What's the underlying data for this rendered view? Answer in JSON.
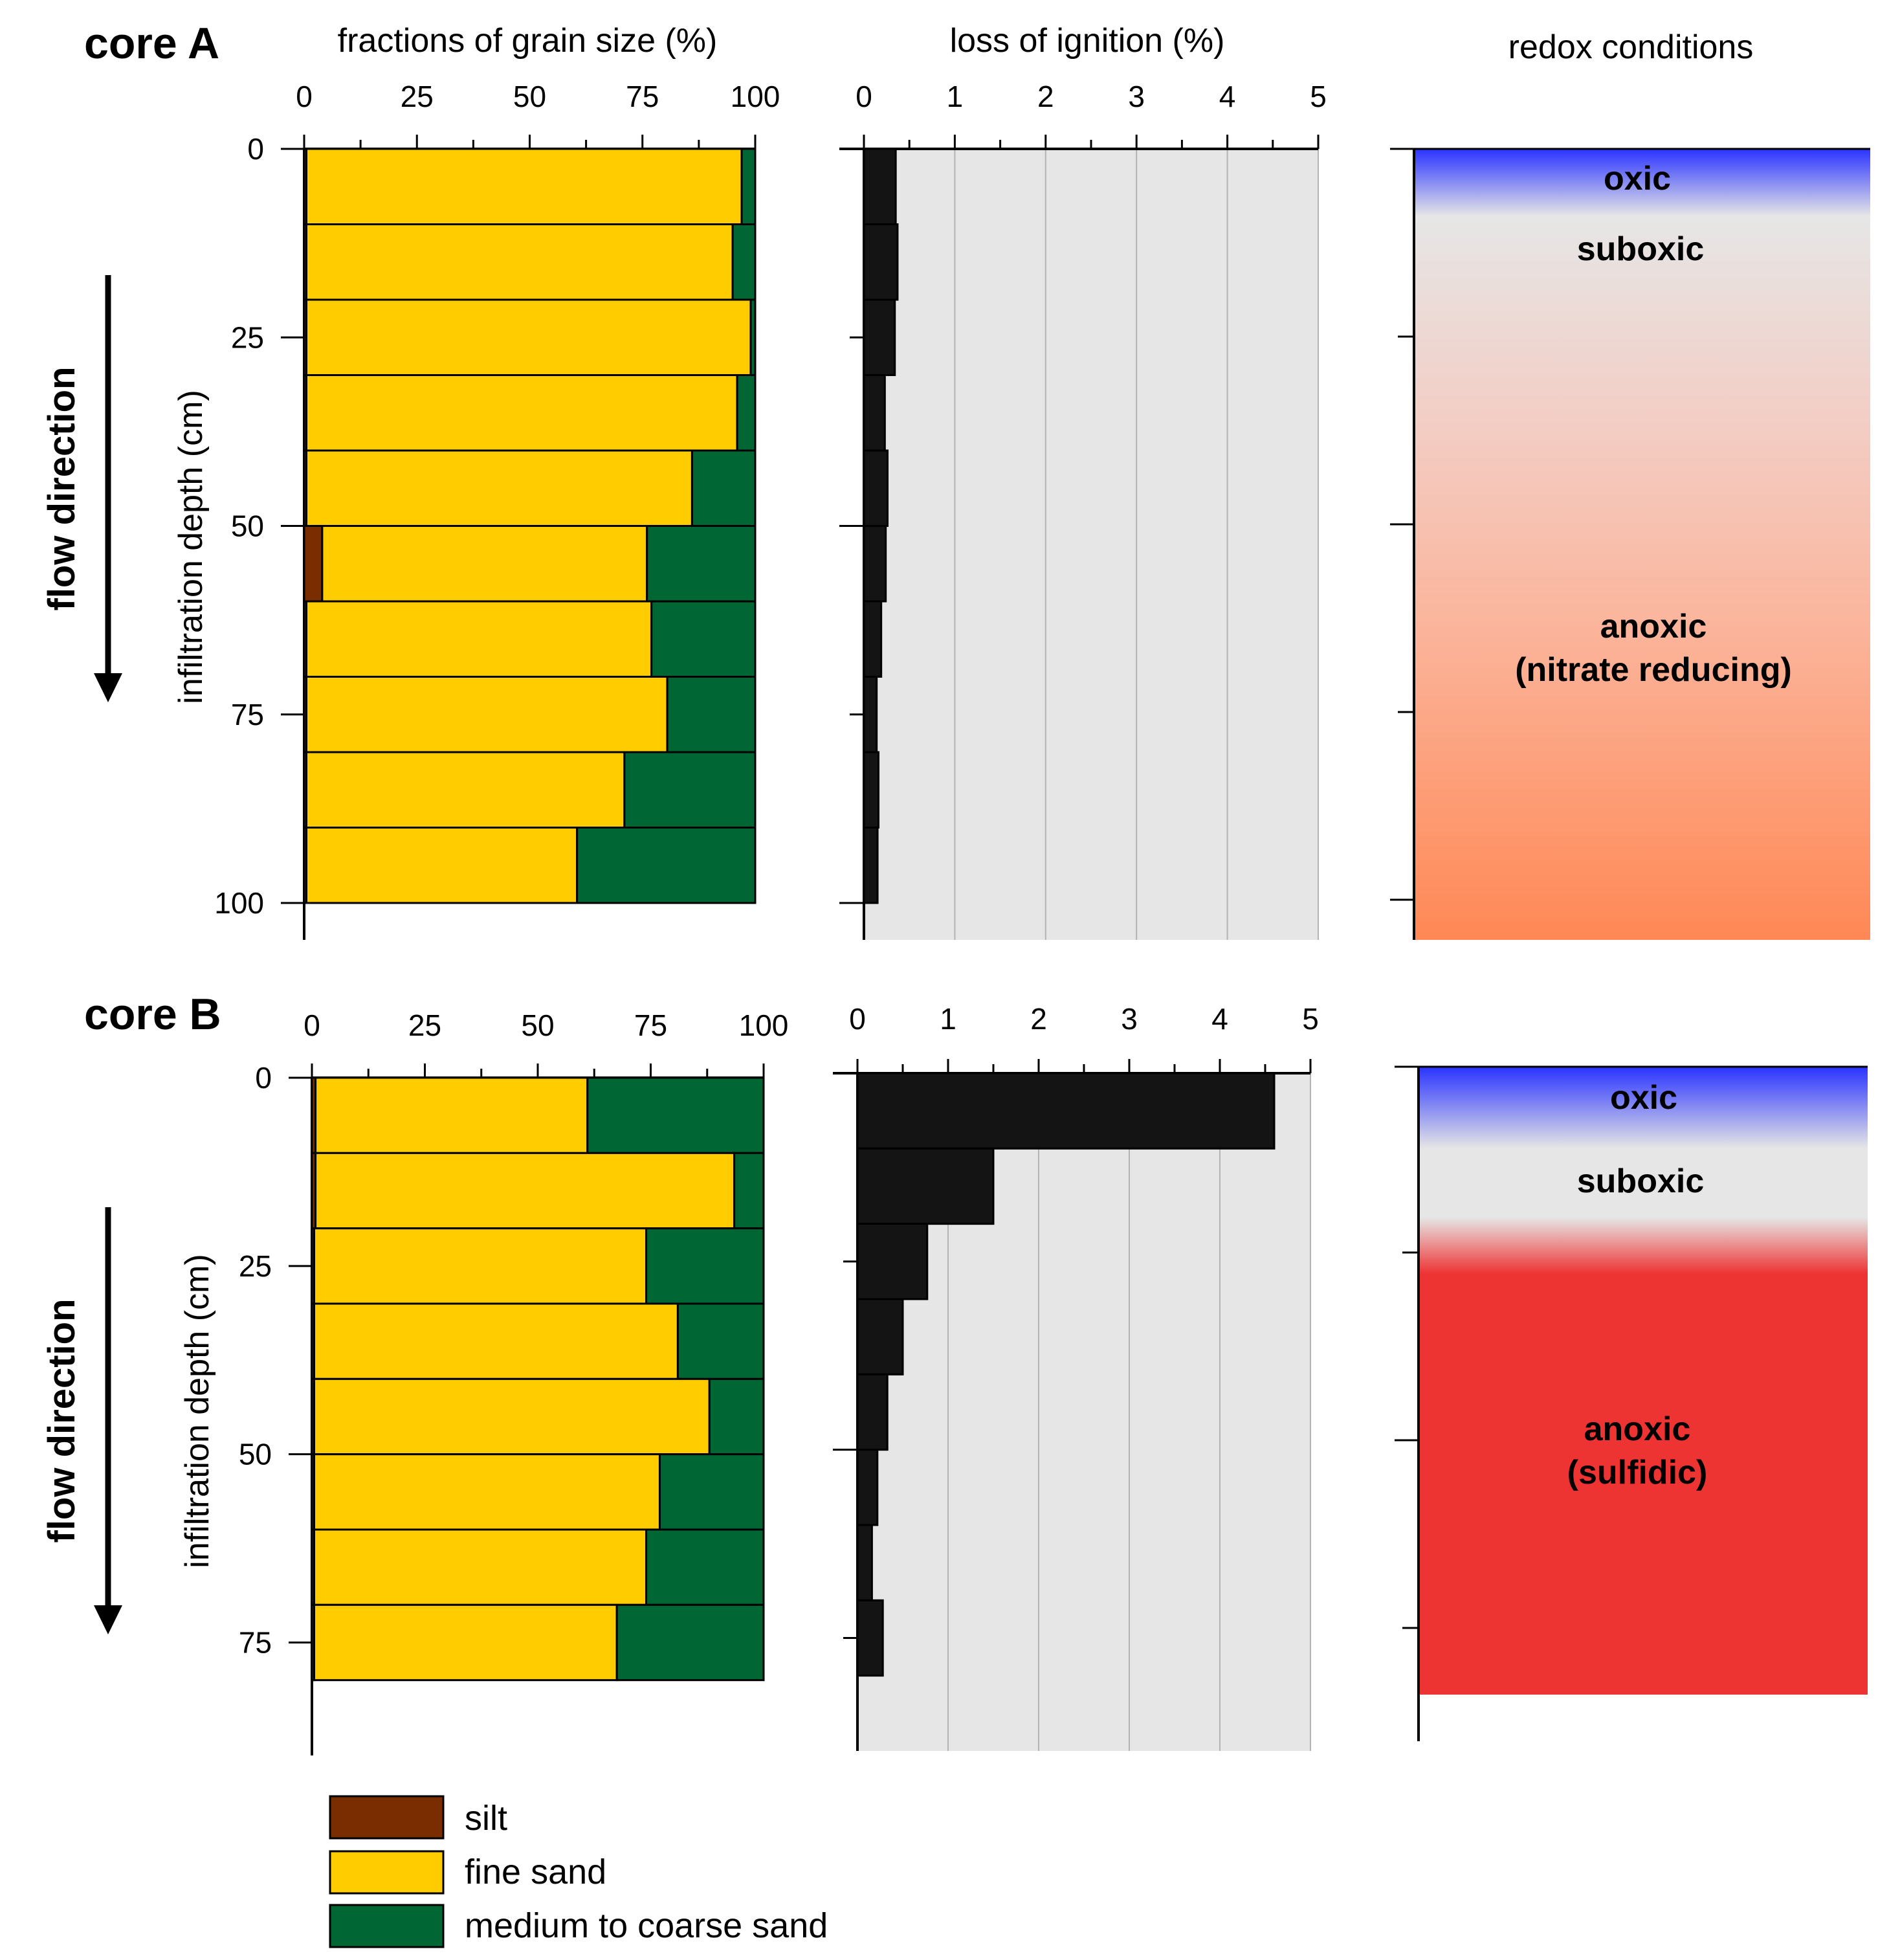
{
  "panels": {
    "column_titles": {
      "grain": "fractions of grain size (%)",
      "loi": "loss of ignition (%)",
      "redox": "redox conditions"
    },
    "core_a": {
      "title": "core A",
      "flow_label": "flow direction"
    },
    "core_b": {
      "title": "core B",
      "flow_label": "flow direction"
    }
  },
  "legend": [
    {
      "label": "silt",
      "color": "#7a2e00"
    },
    {
      "label": "fine sand",
      "color": "#ffcc00"
    },
    {
      "label": "medium to coarse sand",
      "color": "#006633"
    }
  ],
  "chart_data": [
    {
      "id": "coreA-grain",
      "type": "bar",
      "orientation": "horizontal-stacked",
      "title": "fractions of grain size (%)",
      "ylabel": "infiltration depth (cm)",
      "xlim": [
        0,
        100
      ],
      "ylim": [
        100,
        0
      ],
      "xticks": [
        0,
        25,
        50,
        75,
        100
      ],
      "yticks": [
        0,
        25,
        50,
        75,
        100
      ],
      "depth_intervals": [
        [
          0,
          10
        ],
        [
          10,
          20
        ],
        [
          20,
          30
        ],
        [
          30,
          40
        ],
        [
          40,
          50
        ],
        [
          50,
          60
        ],
        [
          60,
          70
        ],
        [
          70,
          80
        ],
        [
          80,
          90
        ],
        [
          90,
          100
        ]
      ],
      "series": [
        {
          "name": "silt",
          "color": "#7a2e00",
          "values": [
            0.5,
            0.5,
            0.5,
            0.5,
            0.5,
            4,
            0.5,
            0.5,
            0.5,
            0.5
          ]
        },
        {
          "name": "fine sand",
          "color": "#ffcc00",
          "values": [
            96.5,
            94.5,
            98.5,
            95.5,
            85.5,
            72,
            76.5,
            80,
            70.5,
            60
          ]
        },
        {
          "name": "medium to coarse sand",
          "color": "#006633",
          "values": [
            3,
            5,
            1,
            4,
            14,
            24,
            23,
            19.5,
            29,
            39.5
          ]
        }
      ]
    },
    {
      "id": "coreA-loi",
      "type": "bar",
      "orientation": "horizontal",
      "title": "loss of ignition (%)",
      "xlim": [
        0,
        5
      ],
      "ylim": [
        100,
        0
      ],
      "xticks": [
        0,
        1,
        2,
        3,
        4,
        5
      ],
      "depth_intervals": [
        [
          0,
          10
        ],
        [
          10,
          20
        ],
        [
          20,
          30
        ],
        [
          30,
          40
        ],
        [
          40,
          50
        ],
        [
          50,
          60
        ],
        [
          60,
          70
        ],
        [
          70,
          80
        ],
        [
          80,
          90
        ],
        [
          90,
          100
        ]
      ],
      "values": [
        0.35,
        0.37,
        0.34,
        0.23,
        0.26,
        0.24,
        0.19,
        0.14,
        0.16,
        0.15
      ]
    },
    {
      "id": "coreA-redox",
      "type": "table",
      "title": "redox conditions",
      "ylim": [
        105,
        0
      ],
      "zones": [
        {
          "label": "oxic",
          "sublabel": "",
          "from": 0,
          "to": 8,
          "color": "#2a33ff"
        },
        {
          "label": "suboxic",
          "sublabel": "",
          "from": 8,
          "to": 25,
          "color": "#e6e6e6"
        },
        {
          "label": "anoxic",
          "sublabel": "(nitrate reducing)",
          "from": 25,
          "to": 105,
          "color": "#ff8855"
        }
      ]
    },
    {
      "id": "coreB-grain",
      "type": "bar",
      "orientation": "horizontal-stacked",
      "title": "fractions of grain size (%)",
      "ylabel": "infiltration depth (cm)",
      "xlim": [
        0,
        100
      ],
      "ylim": [
        90,
        0
      ],
      "xticks": [
        0,
        25,
        50,
        75,
        100
      ],
      "yticks": [
        0,
        25,
        50,
        75
      ],
      "depth_intervals": [
        [
          0,
          10
        ],
        [
          10,
          20
        ],
        [
          20,
          30
        ],
        [
          30,
          40
        ],
        [
          40,
          50
        ],
        [
          50,
          60
        ],
        [
          60,
          70
        ],
        [
          70,
          80
        ]
      ],
      "series": [
        {
          "name": "silt",
          "color": "#7a2e00",
          "values": [
            0.8,
            0.8,
            0.5,
            0.5,
            0.5,
            0.5,
            0.5,
            0.5
          ]
        },
        {
          "name": "fine sand",
          "color": "#ffcc00",
          "values": [
            60.2,
            92.7,
            73.5,
            80.5,
            87.5,
            76.5,
            73.5,
            67
          ]
        },
        {
          "name": "medium to coarse sand",
          "color": "#006633",
          "values": [
            39,
            6.5,
            26,
            19,
            12,
            23,
            26,
            32.5
          ]
        }
      ]
    },
    {
      "id": "coreB-loi",
      "type": "bar",
      "orientation": "horizontal",
      "title": "loss of ignition (%)",
      "xlim": [
        0,
        5
      ],
      "ylim": [
        90,
        0
      ],
      "xticks": [
        0,
        1,
        2,
        3,
        4,
        5
      ],
      "depth_intervals": [
        [
          0,
          10
        ],
        [
          10,
          20
        ],
        [
          20,
          30
        ],
        [
          30,
          40
        ],
        [
          40,
          50
        ],
        [
          50,
          60
        ],
        [
          60,
          70
        ],
        [
          70,
          80
        ]
      ],
      "values": [
        4.6,
        1.5,
        0.77,
        0.5,
        0.33,
        0.22,
        0.16,
        0.28
      ]
    },
    {
      "id": "coreB-redox",
      "type": "table",
      "title": "redox conditions",
      "ylim": [
        90,
        0
      ],
      "zones": [
        {
          "label": "oxic",
          "sublabel": "",
          "from": 0,
          "to": 10,
          "color": "#2a33ff"
        },
        {
          "label": "suboxic",
          "sublabel": "",
          "from": 10,
          "to": 22,
          "color": "#e6e6e6"
        },
        {
          "label": "anoxic",
          "sublabel": "(sulfidic)",
          "from": 22,
          "to": 84,
          "color": "#ee3333"
        }
      ]
    }
  ]
}
